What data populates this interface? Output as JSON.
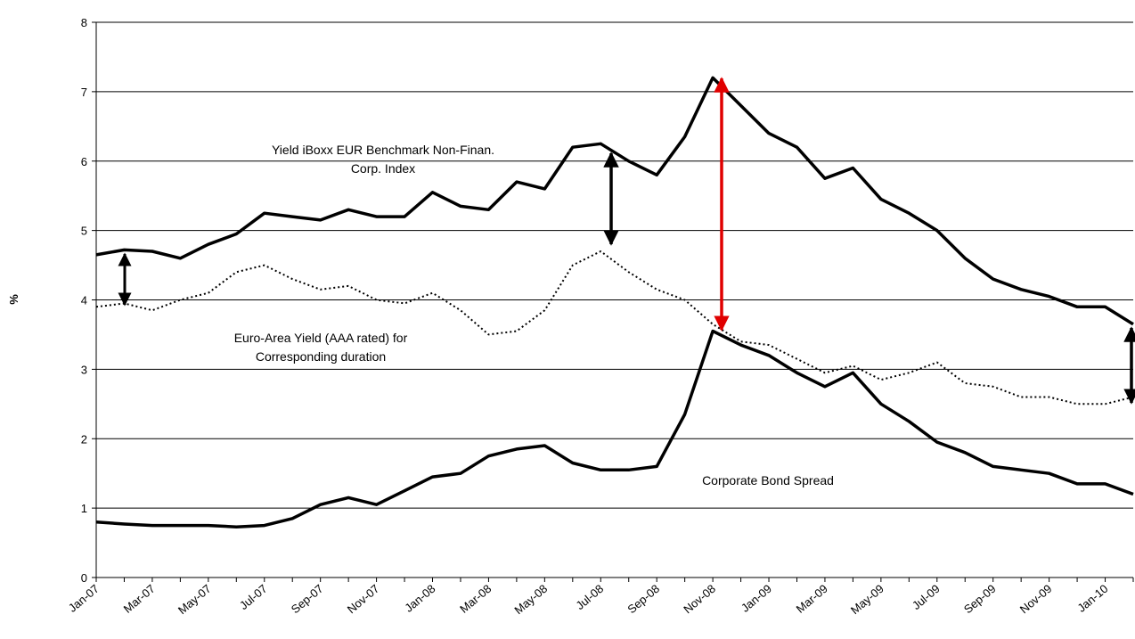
{
  "chart_data": {
    "type": "line",
    "y_label": "%",
    "categories": [
      "Jan-07",
      null,
      "Mar-07",
      null,
      "May-07",
      null,
      "Jul-07",
      null,
      "Sep-07",
      null,
      "Nov-07",
      null,
      "Jan-08",
      null,
      "Mar-08",
      null,
      "May-08",
      null,
      "Jul-08",
      null,
      "Sep-08",
      null,
      "Nov-08",
      null,
      "Jan-09",
      null,
      "Mar-09",
      null,
      "May-09",
      null,
      "Jul-09",
      null,
      "Sep-09",
      null,
      "Nov-09",
      null,
      "Jan-10",
      null
    ],
    "ylim": [
      0,
      8
    ],
    "yticks": [
      0,
      1,
      2,
      3,
      4,
      5,
      6,
      7,
      8
    ],
    "grid": true,
    "series": [
      {
        "name": "Yield iBoxx EUR Benchmark Non-Finan. Corp. Index",
        "color": "#000000",
        "style": "solid",
        "values": [
          4.65,
          4.72,
          4.7,
          4.6,
          4.8,
          4.95,
          5.25,
          5.2,
          5.15,
          5.3,
          5.2,
          5.2,
          5.55,
          5.35,
          5.3,
          5.7,
          5.6,
          6.2,
          6.25,
          6.0,
          5.8,
          6.35,
          7.2,
          6.8,
          6.4,
          6.2,
          5.75,
          5.9,
          5.45,
          5.25,
          5.0,
          4.6,
          4.3,
          4.15,
          4.05,
          3.9,
          3.9,
          3.65
        ]
      },
      {
        "name": "Euro-Area Yield (AAA rated) for Corresponding duration",
        "color": "#000000",
        "style": "dotted",
        "values": [
          3.9,
          3.95,
          3.85,
          4.0,
          4.1,
          4.4,
          4.5,
          4.3,
          4.15,
          4.2,
          4.0,
          3.95,
          4.1,
          3.85,
          3.5,
          3.55,
          3.85,
          4.5,
          4.7,
          4.4,
          4.15,
          4.0,
          3.65,
          3.4,
          3.35,
          3.15,
          2.95,
          3.05,
          2.85,
          2.95,
          3.1,
          2.8,
          2.75,
          2.6,
          2.6,
          2.5,
          2.5,
          2.6
        ]
      },
      {
        "name": "Corporate Bond Spread",
        "color": "#000000",
        "style": "solid",
        "values": [
          0.8,
          0.77,
          0.75,
          0.75,
          0.75,
          0.73,
          0.75,
          0.85,
          1.05,
          1.15,
          1.05,
          1.25,
          1.45,
          1.5,
          1.75,
          1.85,
          1.9,
          1.65,
          1.55,
          1.55,
          1.6,
          2.35,
          3.55,
          3.35,
          3.2,
          2.95,
          2.75,
          2.95,
          2.5,
          2.25,
          1.95,
          1.8,
          1.6,
          1.55,
          1.5,
          1.35,
          1.35,
          1.2
        ]
      }
    ],
    "annotations": [
      "Yield iBoxx EUR Benchmark Non-Finan.",
      "Corp. Index",
      "Euro-Area Yield (AAA rated) for",
      "Corresponding duration",
      "Corporate Bond Spread"
    ]
  }
}
